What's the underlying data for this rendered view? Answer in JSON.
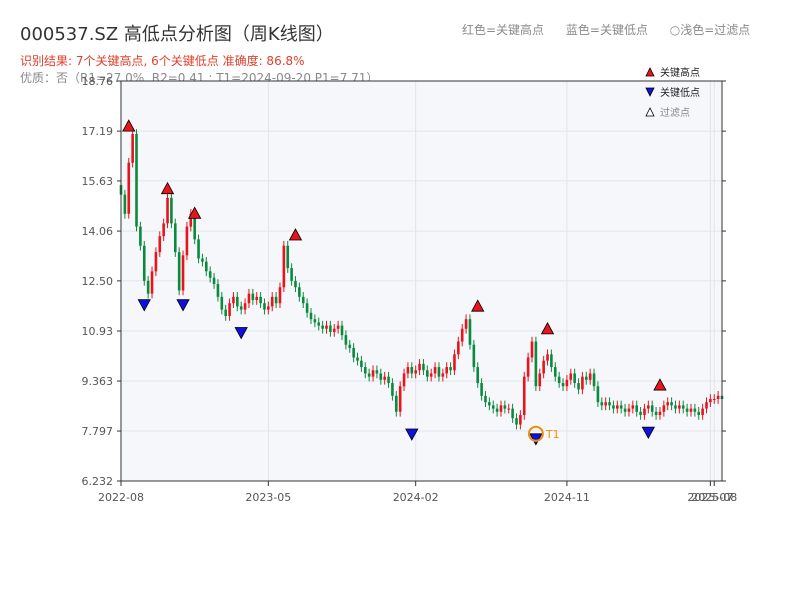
{
  "chart_data": {
    "type": "candlestick",
    "title": "000537.SZ 高低点分析图（周K线图）",
    "subtitle_result": "识别结果: 7个关键高点, 6个关键低点   准确度: 86.8%",
    "subtitle_quality": "优质：否（R1=27.0%, R2=0.41 ; T1=2024-09-20 P1=7.71）",
    "header_legend": [
      "红色=关键高点",
      "蓝色=关键低点",
      "○浅色=过滤点"
    ],
    "legend": [
      {
        "label": "关键高点",
        "marker": "triangle-up",
        "color": "#e8141c"
      },
      {
        "label": "关键低点",
        "marker": "triangle-down",
        "color": "#1010e0"
      },
      {
        "label": "过滤点",
        "marker": "triangle-up-hollow",
        "color": "#ffffff"
      }
    ],
    "y_ticks": [
      "6.232",
      "7.797",
      "9.363",
      "10.93",
      "12.50",
      "14.06",
      "15.63",
      "17.19",
      "18.76"
    ],
    "ylim": [
      6.232,
      18.76
    ],
    "x_ticks": [
      {
        "label": "2022-08",
        "week": 0
      },
      {
        "label": "2023-05",
        "week": 38
      },
      {
        "label": "2024-02",
        "week": 76
      },
      {
        "label": "2024-11",
        "week": 115
      },
      {
        "label": "2025-07",
        "week": 152
      },
      {
        "label": "2025-08",
        "week": 153
      }
    ],
    "grid": true,
    "legend_position": "top-right",
    "up_color": "#e8141c",
    "down_color": "#0a8a3c",
    "closes": [
      15.2,
      14.6,
      16.2,
      17.1,
      14.2,
      13.6,
      12.5,
      12.1,
      12.8,
      13.4,
      13.9,
      14.3,
      15.1,
      14.3,
      13.4,
      12.2,
      13.3,
      14.2,
      14.6,
      13.8,
      13.2,
      13.1,
      12.8,
      12.6,
      12.4,
      12.0,
      11.6,
      11.4,
      11.8,
      12.0,
      11.7,
      11.6,
      11.8,
      12.1,
      11.9,
      12.0,
      11.8,
      11.6,
      11.7,
      12.0,
      11.8,
      12.3,
      13.6,
      12.9,
      12.5,
      12.3,
      12.0,
      11.8,
      11.5,
      11.3,
      11.2,
      11.1,
      11.0,
      11.1,
      10.9,
      11.0,
      11.1,
      10.8,
      10.5,
      10.4,
      10.1,
      10.0,
      9.8,
      9.6,
      9.5,
      9.7,
      9.6,
      9.4,
      9.5,
      9.3,
      8.9,
      8.4,
      9.2,
      9.6,
      9.8,
      9.6,
      9.7,
      9.9,
      9.7,
      9.5,
      9.6,
      9.8,
      9.5,
      9.6,
      9.8,
      9.7,
      10.2,
      10.6,
      11.0,
      11.3,
      10.5,
      9.8,
      9.3,
      8.9,
      8.7,
      8.6,
      8.5,
      8.4,
      8.6,
      8.5,
      8.5,
      8.2,
      8.0,
      8.3,
      9.5,
      10.1,
      10.6,
      9.2,
      9.6,
      10.0,
      10.2,
      9.8,
      9.5,
      9.3,
      9.2,
      9.4,
      9.6,
      9.3,
      9.1,
      9.5,
      9.4,
      9.6,
      9.2,
      8.7,
      8.6,
      8.7,
      8.6,
      8.5,
      8.6,
      8.5,
      8.4,
      8.5,
      8.6,
      8.4,
      8.3,
      8.5,
      8.6,
      8.4,
      8.3,
      8.4,
      8.6,
      8.7,
      8.6,
      8.5,
      8.6,
      8.5,
      8.4,
      8.5,
      8.4,
      8.3,
      8.5,
      8.7,
      8.8,
      8.8,
      8.9,
      8.8
    ],
    "key_highs": [
      {
        "week": 2,
        "price": 17.19
      },
      {
        "week": 12,
        "price": 15.23
      },
      {
        "week": 19,
        "price": 14.46
      },
      {
        "week": 45,
        "price": 13.78
      },
      {
        "week": 92,
        "price": 11.55
      },
      {
        "week": 110,
        "price": 10.84
      },
      {
        "week": 139,
        "price": 9.08
      }
    ],
    "key_lows": [
      {
        "week": 6,
        "price": 11.91
      },
      {
        "week": 16,
        "price": 11.91
      },
      {
        "week": 31,
        "price": 11.04
      },
      {
        "week": 75,
        "price": 7.86
      },
      {
        "week": 107,
        "price": 7.71
      },
      {
        "week": 136,
        "price": 7.92
      }
    ],
    "annotation": {
      "label": "T1",
      "week": 107,
      "price": 7.71,
      "color": "#f0900a"
    }
  }
}
